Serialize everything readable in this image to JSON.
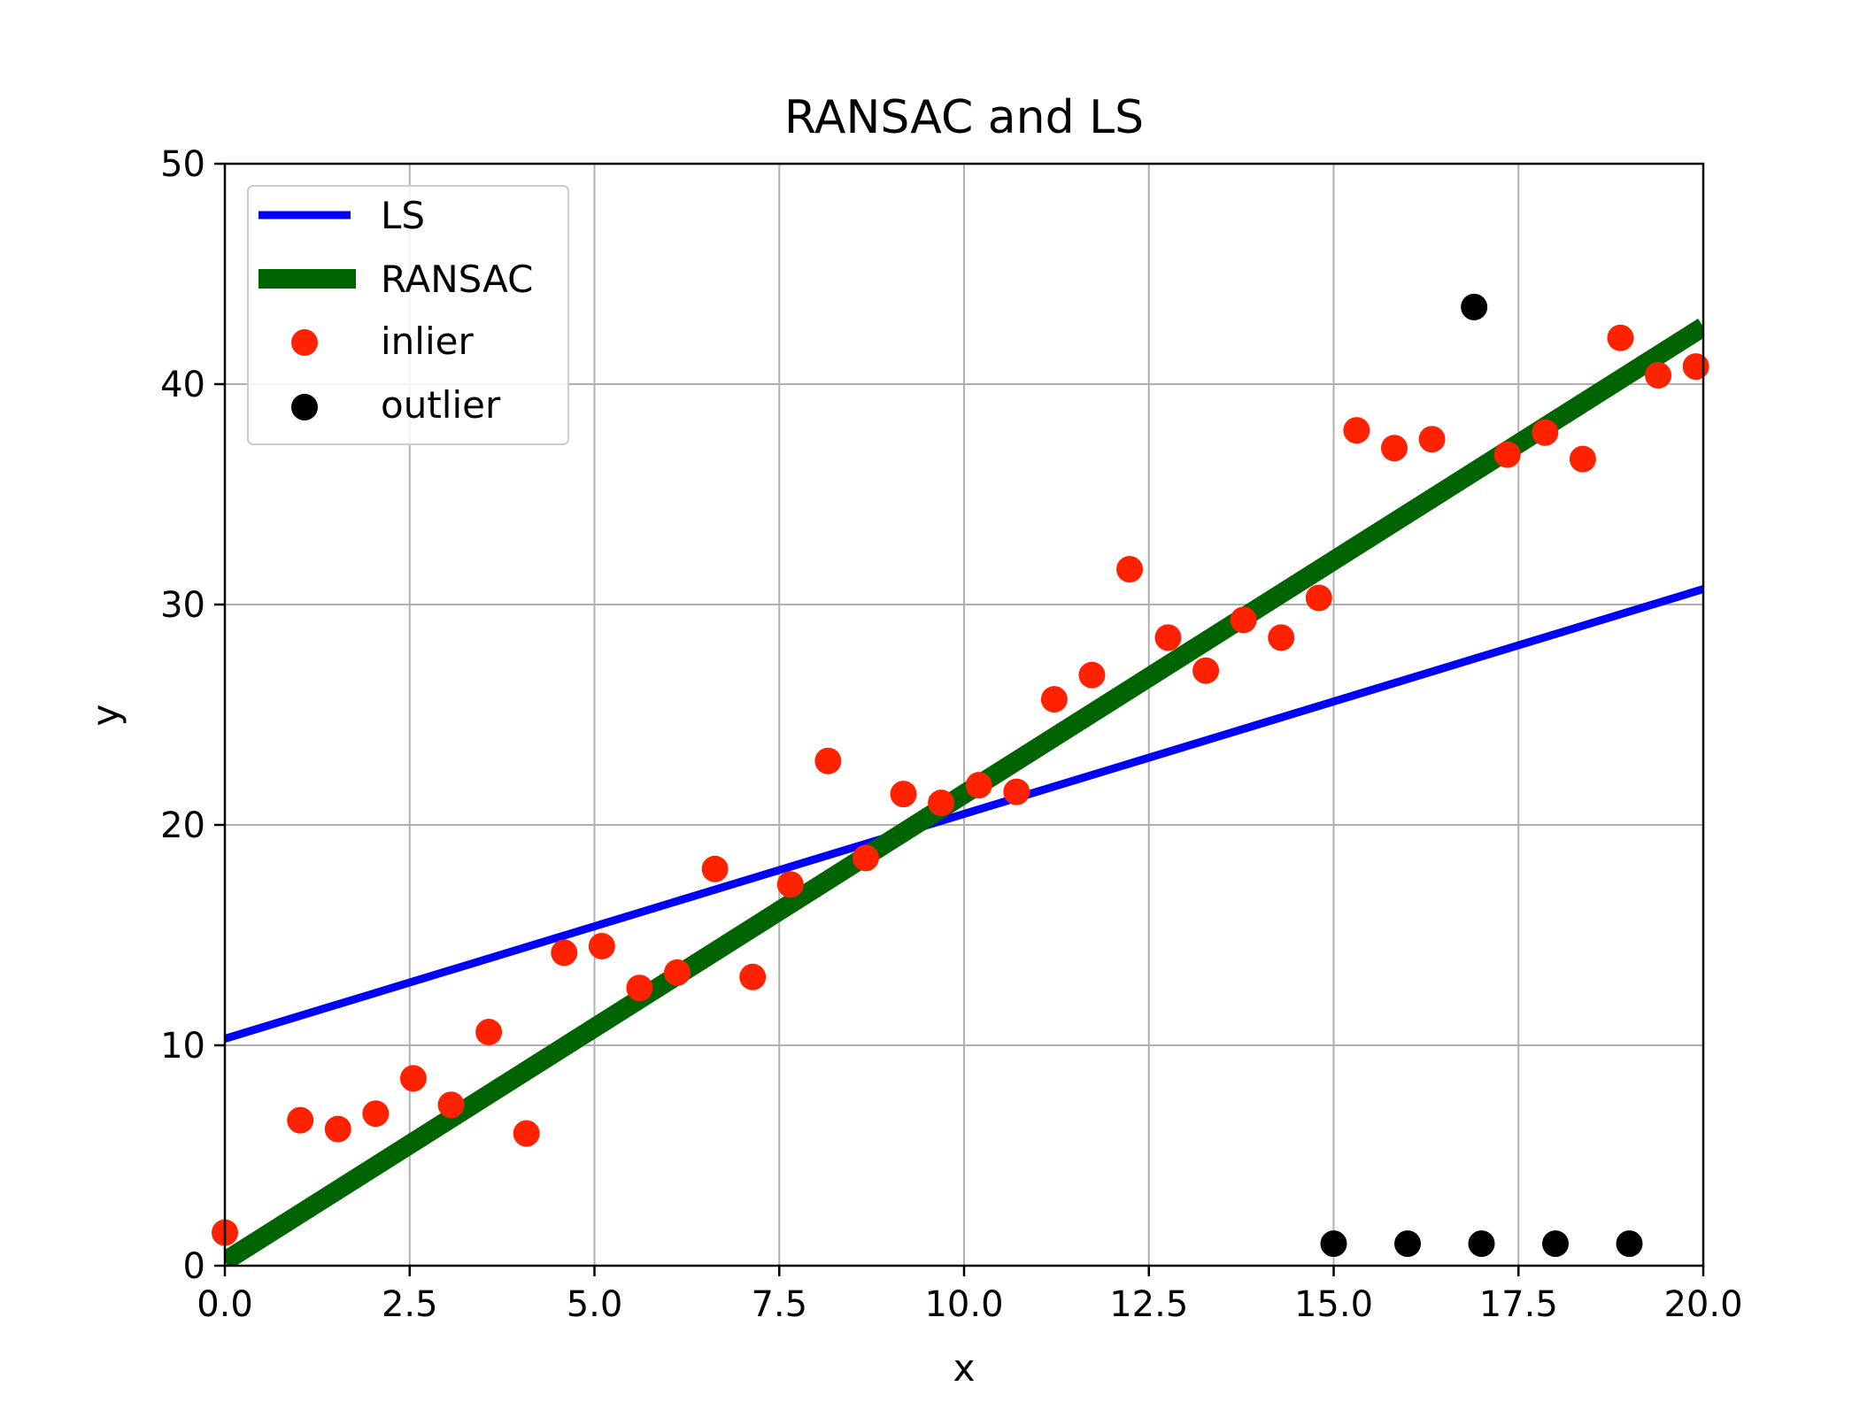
{
  "chart_data": {
    "type": "scatter",
    "title": "RANSAC and LS",
    "xlabel": "x",
    "ylabel": "y",
    "xlim": [
      0,
      20
    ],
    "ylim": [
      0,
      50
    ],
    "xticks": [
      "0.0",
      "2.5",
      "5.0",
      "7.5",
      "10.0",
      "12.5",
      "15.0",
      "17.5",
      "20.0"
    ],
    "yticks": [
      "0",
      "10",
      "20",
      "30",
      "40",
      "50"
    ],
    "grid": true,
    "legend_position": "upper-left",
    "lines": [
      {
        "name": "LS",
        "color": "#0000ff",
        "x": [
          0,
          20
        ],
        "y": [
          10.3,
          30.7
        ]
      },
      {
        "name": "RANSAC",
        "color": "#006400",
        "x": [
          0,
          20
        ],
        "y": [
          0.2,
          42.6
        ]
      }
    ],
    "scatter": [
      {
        "name": "inlier",
        "color": "#ff2200",
        "points": [
          [
            0.0,
            1.5
          ],
          [
            1.02,
            6.6
          ],
          [
            1.53,
            6.2
          ],
          [
            2.04,
            6.9
          ],
          [
            2.55,
            8.5
          ],
          [
            3.06,
            7.3
          ],
          [
            3.57,
            10.6
          ],
          [
            4.08,
            6.0
          ],
          [
            4.59,
            14.2
          ],
          [
            5.1,
            14.5
          ],
          [
            5.61,
            12.6
          ],
          [
            6.12,
            13.3
          ],
          [
            6.63,
            18.0
          ],
          [
            7.14,
            13.1
          ],
          [
            7.65,
            17.3
          ],
          [
            8.16,
            22.9
          ],
          [
            8.67,
            18.5
          ],
          [
            9.18,
            21.4
          ],
          [
            9.69,
            21.0
          ],
          [
            10.2,
            21.8
          ],
          [
            10.71,
            21.5
          ],
          [
            11.22,
            25.7
          ],
          [
            11.73,
            26.8
          ],
          [
            12.24,
            31.6
          ],
          [
            12.76,
            28.5
          ],
          [
            13.27,
            27.0
          ],
          [
            13.78,
            29.3
          ],
          [
            14.29,
            28.5
          ],
          [
            14.8,
            30.3
          ],
          [
            15.31,
            37.9
          ],
          [
            15.82,
            37.1
          ],
          [
            16.33,
            37.5
          ],
          [
            17.35,
            36.8
          ],
          [
            17.86,
            37.8
          ],
          [
            18.37,
            36.6
          ],
          [
            18.88,
            42.1
          ],
          [
            19.39,
            40.4
          ],
          [
            19.9,
            40.8
          ]
        ]
      },
      {
        "name": "outlier",
        "color": "#000000",
        "points": [
          [
            15.0,
            1.0
          ],
          [
            16.0,
            1.0
          ],
          [
            17.0,
            1.0
          ],
          [
            18.0,
            1.0
          ],
          [
            19.0,
            1.0
          ],
          [
            16.9,
            43.5
          ]
        ]
      }
    ]
  }
}
